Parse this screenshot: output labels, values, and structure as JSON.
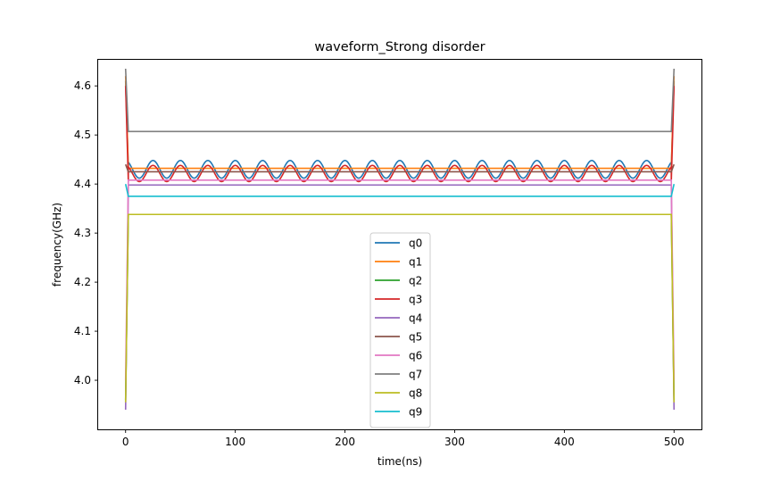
{
  "chart_data": {
    "type": "line",
    "title": "waveform_Strong disorder",
    "xlabel": "time(ns)",
    "ylabel": "frequency(GHz)",
    "xlim": [
      -25,
      525
    ],
    "ylim": [
      3.9,
      4.655
    ],
    "xticks": [
      0,
      100,
      200,
      300,
      400,
      500
    ],
    "yticks": [
      4.0,
      4.1,
      4.2,
      4.3,
      4.4,
      4.5,
      4.6
    ],
    "xtick_labels": [
      "0",
      "100",
      "200",
      "300",
      "400",
      "500"
    ],
    "ytick_labels": [
      "4.0",
      "4.1",
      "4.2",
      "4.3",
      "4.4",
      "4.5",
      "4.6"
    ],
    "grid": false,
    "legend_position": "center-bottom",
    "series": [
      {
        "name": "q0",
        "color": "#1f77b4",
        "x": [
          0,
          2.5,
          12.5,
          37.5,
          62.5,
          87.5,
          112.5,
          137.5,
          162.5,
          187.5,
          212.5,
          237.5,
          262.5,
          287.5,
          312.5,
          337.5,
          362.5,
          387.5,
          412.5,
          437.5,
          462.5,
          487.5,
          497.5,
          500
        ],
        "y": [
          4.61,
          4.432,
          4.412,
          4.412,
          4.412,
          4.412,
          4.412,
          4.412,
          4.412,
          4.412,
          4.412,
          4.412,
          4.412,
          4.412,
          4.412,
          4.412,
          4.412,
          4.412,
          4.412,
          4.412,
          4.412,
          4.412,
          4.432,
          4.61
        ],
        "peaks": [
          25,
          50,
          75,
          100,
          125,
          150,
          175,
          200,
          225,
          250,
          275,
          300,
          325,
          350,
          375,
          400,
          425,
          450,
          475
        ],
        "peak_y": 4.448
      },
      {
        "name": "q1",
        "color": "#ff7f0e",
        "x": [
          0,
          2.5,
          497.5,
          500
        ],
        "y": [
          4.62,
          4.432,
          4.432,
          4.62
        ]
      },
      {
        "name": "q2",
        "color": "#2ca02c",
        "x": [
          0,
          2.5,
          497.5,
          500
        ],
        "y": [
          3.96,
          4.338,
          4.338,
          3.96
        ]
      },
      {
        "name": "q3",
        "color": "#d62728",
        "x": [
          0,
          2.5,
          12.5,
          37.5,
          62.5,
          87.5,
          112.5,
          137.5,
          162.5,
          187.5,
          212.5,
          237.5,
          262.5,
          287.5,
          312.5,
          337.5,
          362.5,
          387.5,
          412.5,
          437.5,
          462.5,
          487.5,
          497.5,
          500
        ],
        "y": [
          4.6,
          4.405,
          4.405,
          4.405,
          4.405,
          4.405,
          4.405,
          4.405,
          4.405,
          4.405,
          4.405,
          4.405,
          4.405,
          4.405,
          4.405,
          4.405,
          4.405,
          4.405,
          4.405,
          4.405,
          4.405,
          4.405,
          4.405,
          4.6
        ],
        "peaks": [
          25,
          50,
          75,
          100,
          125,
          150,
          175,
          200,
          225,
          250,
          275,
          300,
          325,
          350,
          375,
          400,
          425,
          450,
          475
        ],
        "peak_y": 4.438
      },
      {
        "name": "q4",
        "color": "#9467bd",
        "x": [
          0,
          2.5,
          497.5,
          500
        ],
        "y": [
          3.94,
          4.398,
          4.398,
          3.94
        ]
      },
      {
        "name": "q5",
        "color": "#8c564b",
        "x": [
          0,
          2.5,
          497.5,
          500
        ],
        "y": [
          4.44,
          4.425,
          4.425,
          4.44
        ]
      },
      {
        "name": "q6",
        "color": "#e377c2",
        "x": [
          0,
          2.5,
          497.5,
          500
        ],
        "y": [
          4.0,
          4.408,
          4.408,
          4.0
        ]
      },
      {
        "name": "q7",
        "color": "#7f7f7f",
        "x": [
          0,
          2.5,
          497.5,
          500
        ],
        "y": [
          4.635,
          4.507,
          4.507,
          4.635
        ]
      },
      {
        "name": "q8",
        "color": "#bcbd22",
        "x": [
          0,
          2.5,
          497.5,
          500
        ],
        "y": [
          3.955,
          4.338,
          4.338,
          3.955
        ]
      },
      {
        "name": "q9",
        "color": "#17becf",
        "x": [
          0,
          2.5,
          497.5,
          500
        ],
        "y": [
          4.4,
          4.375,
          4.375,
          4.4
        ]
      }
    ]
  }
}
